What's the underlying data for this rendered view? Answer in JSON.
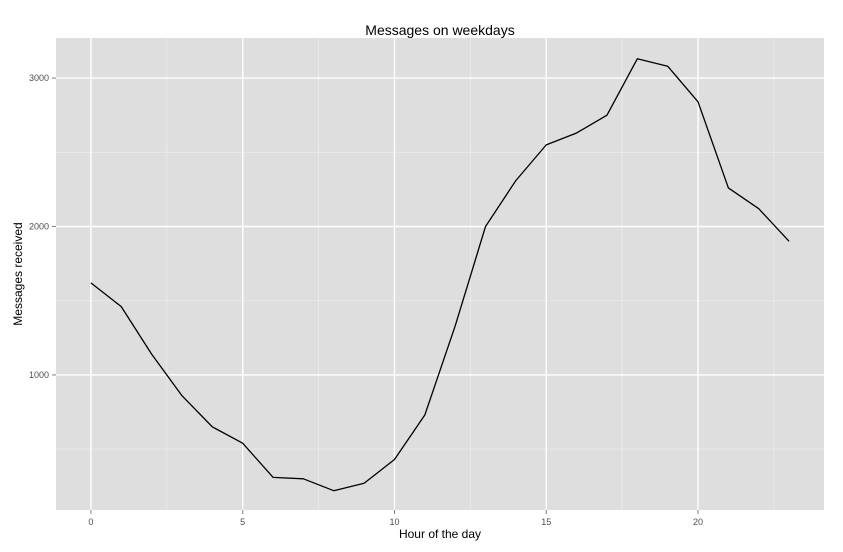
{
  "chart_data": {
    "type": "line",
    "title": "Messages on weekdays",
    "xlabel": "Hour of the day",
    "ylabel": "Messages received",
    "xlim": [
      -1.15,
      24.15
    ],
    "ylim": [
      90,
      3270
    ],
    "x_ticks": [
      0,
      5,
      10,
      15,
      20
    ],
    "x_minor_ticks": [
      2.5,
      7.5,
      12.5,
      17.5,
      22.5
    ],
    "y_ticks": [
      1000,
      2000,
      3000
    ],
    "y_minor_ticks": [
      500,
      1500,
      2500
    ],
    "grid": true,
    "colors": {
      "panel_background": "#dedede",
      "grid_major": "#ffffff",
      "grid_minor": "#ececec",
      "line": "#000000",
      "tick_label": "#4d4d4d",
      "tick_mark": "#808080"
    },
    "series": [
      {
        "x": [
          0,
          1,
          2,
          3,
          4,
          5,
          6,
          7,
          8,
          9,
          10,
          11,
          12,
          13,
          14,
          15,
          16,
          17,
          18,
          19,
          20,
          21,
          22,
          23
        ],
        "values": [
          1620,
          1460,
          1140,
          860,
          650,
          540,
          310,
          300,
          220,
          270,
          430,
          730,
          1330,
          2000,
          2310,
          2550,
          2630,
          2750,
          3130,
          3080,
          2840,
          2260,
          2120,
          1900
        ]
      }
    ]
  }
}
